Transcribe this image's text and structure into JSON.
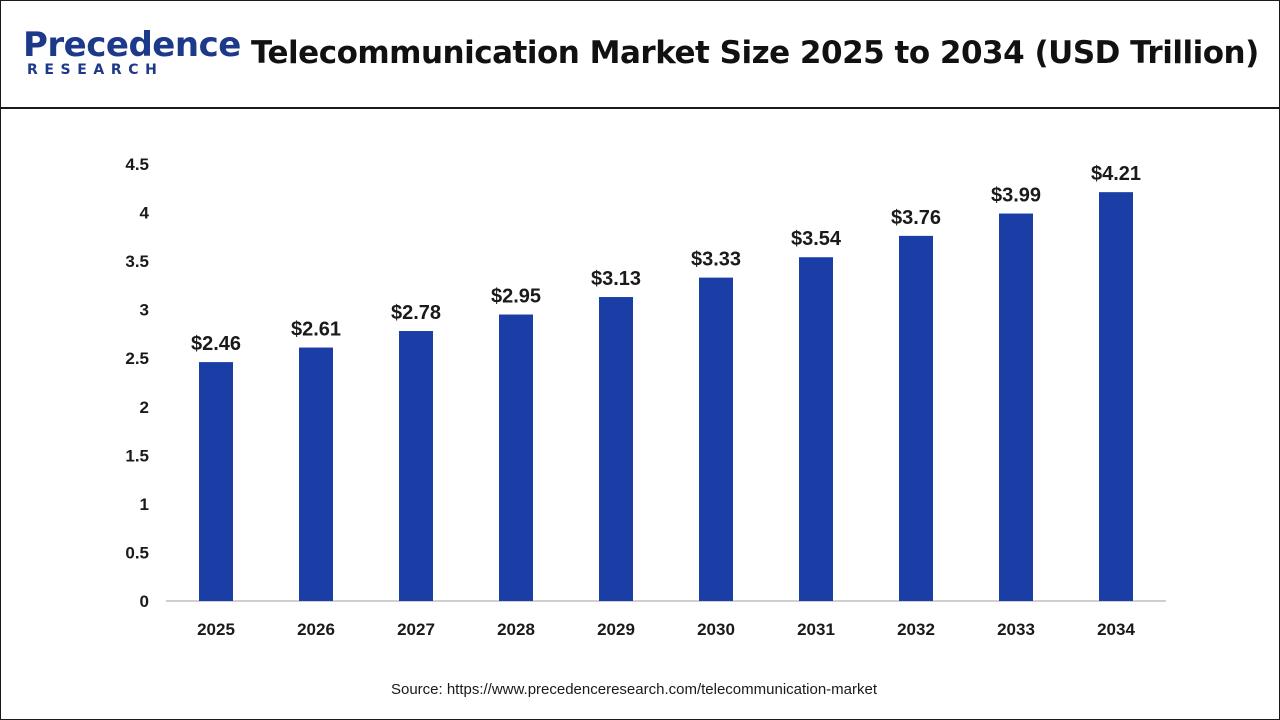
{
  "header": {
    "logo_main": "Precedence",
    "logo_sub": "RESEARCH",
    "title": "Telecommunication Market Size 2025 to 2034 (USD Trillion)"
  },
  "footer": {
    "source": "Source: https://www.precedenceresearch.com/telecommunication-market"
  },
  "chart_data": {
    "type": "bar",
    "title": "Telecommunication Market Size 2025 to 2034 (USD Trillion)",
    "categories": [
      "2025",
      "2026",
      "2027",
      "2028",
      "2029",
      "2030",
      "2031",
      "2032",
      "2033",
      "2034"
    ],
    "values": [
      2.46,
      2.61,
      2.78,
      2.95,
      3.13,
      3.33,
      3.54,
      3.76,
      3.99,
      4.21
    ],
    "data_labels": [
      "$2.46",
      "$2.61",
      "$2.78",
      "$2.95",
      "$3.13",
      "$3.33",
      "$3.54",
      "$3.76",
      "$3.99",
      "$4.21"
    ],
    "yticks": [
      0,
      0.5,
      1,
      1.5,
      2,
      2.5,
      3,
      3.5,
      4,
      4.5
    ],
    "ytick_labels": [
      "0",
      "0.5",
      "1",
      "1.5",
      "2",
      "2.5",
      "3",
      "3.5",
      "4",
      "4.5"
    ],
    "ylim": [
      0,
      4.5
    ],
    "xlabel": "",
    "ylabel": "",
    "grid": false,
    "legend": "none",
    "bar_color": "#1b3ea6",
    "axis_color": "#bfbfbf"
  }
}
